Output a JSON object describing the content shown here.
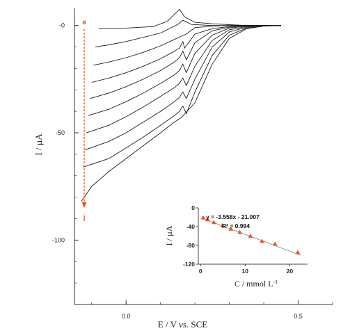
{
  "chart_data": [
    {
      "type": "line",
      "xlabel_prefix": "E / V ",
      "xlabel_italic": "vs.",
      "xlabel_suffix": " SCE",
      "ylabel": "I / µA",
      "x_ticks": [
        {
          "value": 0.0,
          "label": "0.0"
        },
        {
          "value": 0.5,
          "label": "0.5"
        }
      ],
      "y_ticks": [
        {
          "value": 0,
          "label": "-0"
        },
        {
          "value": -50,
          "label": "-50"
        },
        {
          "value": -100,
          "label": "-100"
        }
      ],
      "xlim": [
        -0.15,
        0.6
      ],
      "ylim": [
        -130,
        8
      ],
      "series_markers": {
        "first": "a",
        "last": "j"
      },
      "series": [
        {
          "values": [
            [
              -0.08,
              -1.5
            ],
            [
              0.0,
              -1.2
            ],
            [
              0.08,
              -0.5
            ],
            [
              0.12,
              2
            ],
            [
              0.155,
              7.5
            ],
            [
              0.17,
              4
            ],
            [
              0.2,
              1.5
            ],
            [
              0.25,
              0.8
            ],
            [
              0.3,
              0.4
            ],
            [
              0.35,
              0
            ],
            [
              0.4,
              0
            ],
            [
              0.45,
              0
            ]
          ]
        },
        {
          "values": [
            [
              -0.09,
              -10
            ],
            [
              -0.05,
              -9
            ],
            [
              0.0,
              -7.5
            ],
            [
              0.05,
              -5.5
            ],
            [
              0.1,
              -3.5
            ],
            [
              0.15,
              0.5
            ],
            [
              0.165,
              2.5
            ],
            [
              0.19,
              0.5
            ],
            [
              0.25,
              0
            ],
            [
              0.3,
              0
            ],
            [
              0.35,
              0
            ],
            [
              0.4,
              0
            ],
            [
              0.45,
              0
            ]
          ]
        },
        {
          "values": [
            [
              -0.095,
              -18.5
            ],
            [
              -0.05,
              -17
            ],
            [
              0.0,
              -15
            ],
            [
              0.05,
              -12.5
            ],
            [
              0.1,
              -9.5
            ],
            [
              0.14,
              -6.5
            ],
            [
              0.16,
              -5
            ],
            [
              0.175,
              -4
            ],
            [
              0.2,
              -1
            ],
            [
              0.25,
              -0.3
            ],
            [
              0.3,
              0
            ],
            [
              0.35,
              0
            ],
            [
              0.4,
              0
            ],
            [
              0.45,
              0
            ]
          ]
        },
        {
          "values": [
            [
              -0.1,
              -26.5
            ],
            [
              -0.05,
              -24.5
            ],
            [
              0.0,
              -22
            ],
            [
              0.05,
              -19
            ],
            [
              0.1,
              -15.5
            ],
            [
              0.14,
              -12
            ],
            [
              0.155,
              -10.5
            ],
            [
              0.165,
              -7.5
            ],
            [
              0.17,
              -10.5
            ],
            [
              0.2,
              -4
            ],
            [
              0.25,
              -1.5
            ],
            [
              0.3,
              -0.5
            ],
            [
              0.35,
              0
            ],
            [
              0.4,
              0
            ],
            [
              0.45,
              0
            ]
          ]
        },
        {
          "values": [
            [
              -0.105,
              -34
            ],
            [
              -0.05,
              -31.5
            ],
            [
              0.0,
              -28.5
            ],
            [
              0.05,
              -25
            ],
            [
              0.1,
              -21
            ],
            [
              0.14,
              -17
            ],
            [
              0.155,
              -15
            ],
            [
              0.165,
              -12
            ],
            [
              0.175,
              -16
            ],
            [
              0.2,
              -8
            ],
            [
              0.25,
              -2.5
            ],
            [
              0.3,
              -0.8
            ],
            [
              0.35,
              0
            ],
            [
              0.4,
              0
            ],
            [
              0.45,
              0
            ]
          ]
        },
        {
          "values": [
            [
              -0.11,
              -42
            ],
            [
              -0.05,
              -39
            ],
            [
              0.0,
              -35.5
            ],
            [
              0.05,
              -31.5
            ],
            [
              0.1,
              -27
            ],
            [
              0.14,
              -23
            ],
            [
              0.155,
              -21
            ],
            [
              0.165,
              -18
            ],
            [
              0.175,
              -22
            ],
            [
              0.2,
              -13
            ],
            [
              0.25,
              -4.5
            ],
            [
              0.3,
              -1.2
            ],
            [
              0.35,
              -0.3
            ],
            [
              0.4,
              0
            ],
            [
              0.45,
              0
            ]
          ]
        },
        {
          "values": [
            [
              -0.115,
              -50
            ],
            [
              -0.05,
              -46.5
            ],
            [
              0.0,
              -42.5
            ],
            [
              0.05,
              -38
            ],
            [
              0.1,
              -33
            ],
            [
              0.14,
              -29
            ],
            [
              0.155,
              -27
            ],
            [
              0.165,
              -24.5
            ],
            [
              0.175,
              -28
            ],
            [
              0.2,
              -19
            ],
            [
              0.25,
              -7
            ],
            [
              0.3,
              -2
            ],
            [
              0.35,
              -0.5
            ],
            [
              0.4,
              0
            ],
            [
              0.45,
              0
            ]
          ]
        },
        {
          "values": [
            [
              -0.12,
              -58
            ],
            [
              -0.05,
              -54
            ],
            [
              0.0,
              -50
            ],
            [
              0.05,
              -45
            ],
            [
              0.1,
              -40
            ],
            [
              0.14,
              -35.5
            ],
            [
              0.155,
              -33.5
            ],
            [
              0.165,
              -31
            ],
            [
              0.175,
              -34
            ],
            [
              0.2,
              -25
            ],
            [
              0.25,
              -10
            ],
            [
              0.3,
              -3
            ],
            [
              0.35,
              -0.8
            ],
            [
              0.4,
              0
            ],
            [
              0.45,
              0
            ]
          ]
        },
        {
          "values": [
            [
              -0.125,
              -66
            ],
            [
              -0.05,
              -62
            ],
            [
              0.0,
              -57
            ],
            [
              0.05,
              -52
            ],
            [
              0.1,
              -46.5
            ],
            [
              0.14,
              -42
            ],
            [
              0.155,
              -40
            ],
            [
              0.165,
              -37.5
            ],
            [
              0.175,
              -41
            ],
            [
              0.2,
              -31
            ],
            [
              0.25,
              -14
            ],
            [
              0.3,
              -4.5
            ],
            [
              0.35,
              -1.2
            ],
            [
              0.4,
              -0.2
            ],
            [
              0.45,
              0
            ]
          ]
        },
        {
          "values": [
            [
              -0.13,
              -82
            ],
            [
              -0.1,
              -75
            ],
            [
              -0.05,
              -68
            ],
            [
              0.0,
              -62
            ],
            [
              0.05,
              -56
            ],
            [
              0.1,
              -50
            ],
            [
              0.14,
              -45
            ],
            [
              0.16,
              -43
            ],
            [
              0.2,
              -36
            ],
            [
              0.25,
              -18
            ],
            [
              0.3,
              -6
            ],
            [
              0.35,
              -1.5
            ],
            [
              0.4,
              -0.3
            ],
            [
              0.45,
              0
            ]
          ]
        }
      ]
    },
    {
      "type": "scatter",
      "xlabel_base": "C / mmol L",
      "xlabel_sup": "-1",
      "ylabel": "I / µA",
      "x_ticks": [
        0,
        10,
        20
      ],
      "y_ticks": [
        {
          "value": 0,
          "label": "0"
        },
        {
          "value": -40,
          "label": "-40"
        },
        {
          "value": -80,
          "label": "-80"
        },
        {
          "value": -120,
          "label": "-120"
        }
      ],
      "xlim": [
        -0.5,
        24
      ],
      "ylim": [
        -120,
        0
      ],
      "equation": "y = -3.558x - 21.007",
      "r_squared": "R² = 0.994",
      "marker_color": "#e8541e",
      "fit": {
        "slope": -3.558,
        "intercept": -21.007
      },
      "points": [
        {
          "x": 0.6,
          "y": -21
        },
        {
          "x": 1.6,
          "y": -25
        },
        {
          "x": 3.0,
          "y": -31
        },
        {
          "x": 4.9,
          "y": -38
        },
        {
          "x": 6.8,
          "y": -45
        },
        {
          "x": 8.8,
          "y": -52
        },
        {
          "x": 11.2,
          "y": -60
        },
        {
          "x": 13.8,
          "y": -71
        },
        {
          "x": 16.7,
          "y": -77
        },
        {
          "x": 21.8,
          "y": -95
        }
      ]
    }
  ]
}
